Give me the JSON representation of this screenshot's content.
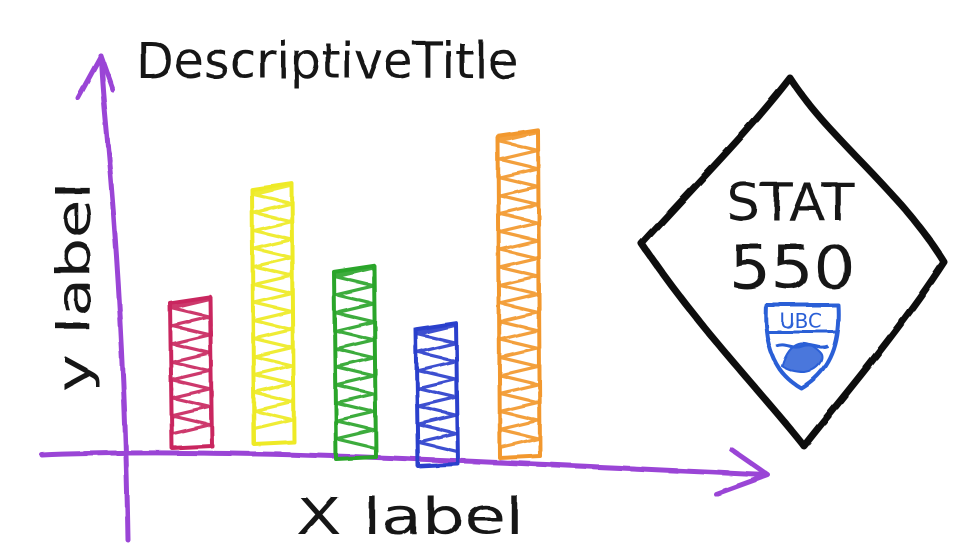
{
  "chart_data": {
    "type": "bar",
    "title": "DescriptiveTitle",
    "xlabel": "X label",
    "ylabel": "y label",
    "categories": [
      "",
      "",
      "",
      "",
      ""
    ],
    "values": [
      3.6,
      6.2,
      4.6,
      3.4,
      7.8
    ],
    "ylim": [
      0,
      10
    ],
    "grid": false,
    "bar_colors": [
      "#c9285f",
      "#eeea25",
      "#2aa52a",
      "#2a3fcc",
      "#f2982e"
    ],
    "axis_color": "#9a45d6"
  },
  "badge": {
    "line1": "STAT",
    "line2": "550",
    "crest_text": "UBC",
    "crest_color": "#2a5fd6",
    "border_color": "#111111"
  }
}
